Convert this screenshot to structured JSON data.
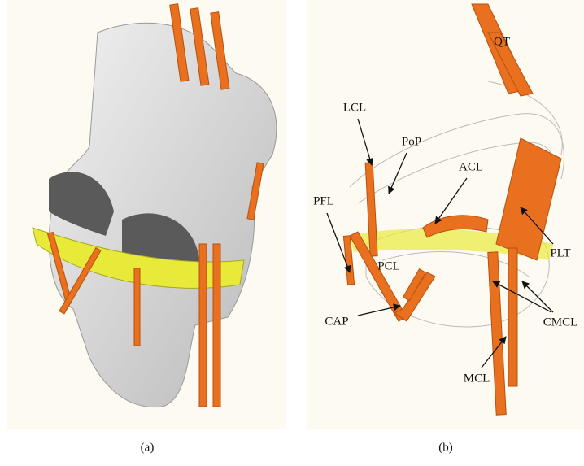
{
  "panels": [
    {
      "label": "(a)"
    },
    {
      "label": "(b)",
      "annotations": [
        "QT",
        "LCL",
        "PoP",
        "ACL",
        "PFL",
        "PLT",
        "PCL",
        "CAP",
        "CMCL",
        "MCL"
      ]
    }
  ]
}
